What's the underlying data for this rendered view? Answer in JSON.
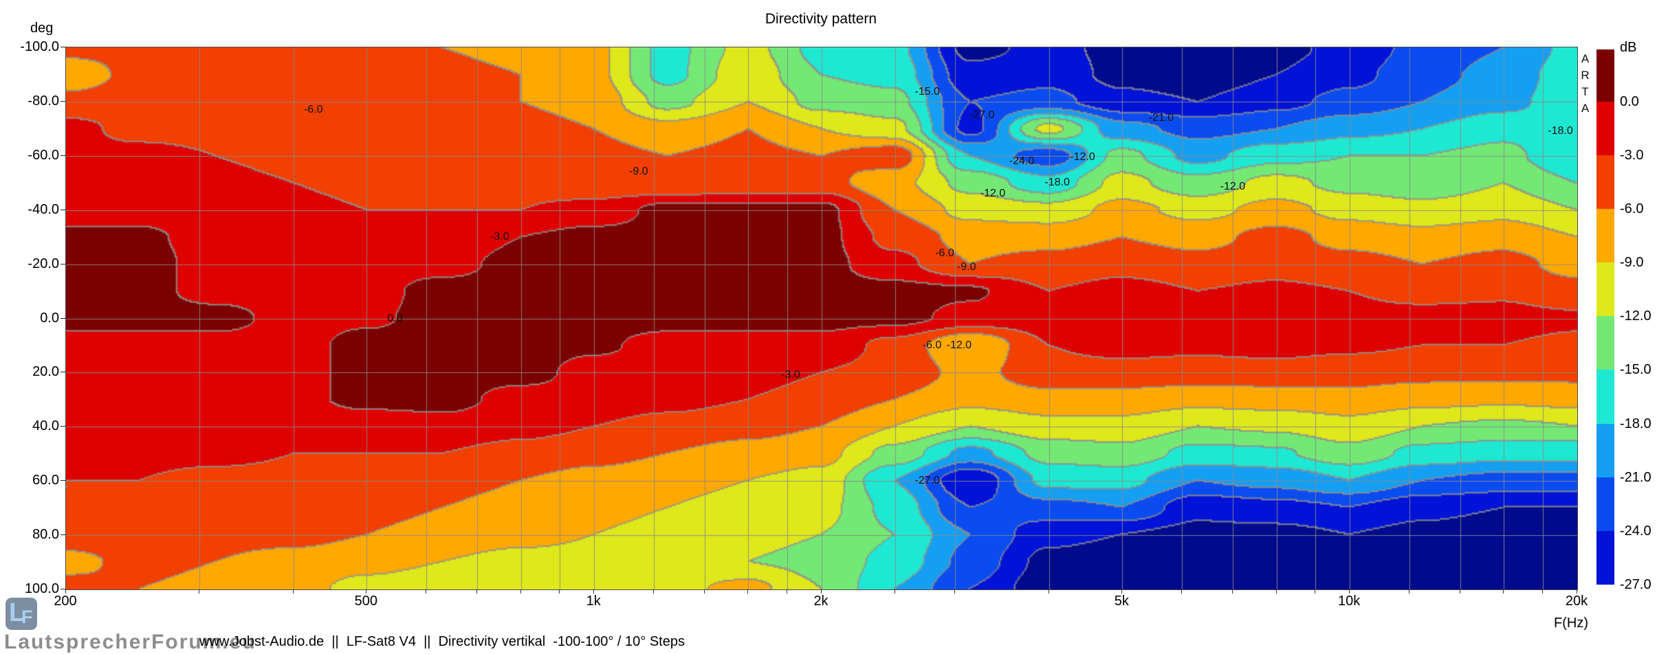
{
  "title": "Directivity pattern",
  "y_axis": {
    "label": "deg",
    "ticks": [
      "-100.0",
      "-80.0",
      "-60.0",
      "-40.0",
      "-20.0",
      "0.0",
      "20.0",
      "40.0",
      "60.0",
      "80.0",
      "100.0"
    ],
    "values": [
      -100,
      -80,
      -60,
      -40,
      -20,
      0,
      20,
      40,
      60,
      80,
      100
    ]
  },
  "x_axis": {
    "label": "F(Hz)",
    "ticks": [
      {
        "f": 200,
        "label": "200"
      },
      {
        "f": 500,
        "label": "500"
      },
      {
        "f": 1000,
        "label": "1k"
      },
      {
        "f": 2000,
        "label": "2k"
      },
      {
        "f": 5000,
        "label": "5k"
      },
      {
        "f": 10000,
        "label": "10k"
      },
      {
        "f": 20000,
        "label": "20k"
      }
    ]
  },
  "colorbar": {
    "label": "dB",
    "tick_labels": [
      "0.0",
      "-3.0",
      "-6.0",
      "-9.0",
      "-12.0",
      "-15.0",
      "-18.0",
      "-21.0",
      "-24.0",
      "-27.0"
    ]
  },
  "arta": "ARTA",
  "watermark": {
    "text": "LautsprecherForum.eu",
    "logo_l": "L",
    "logo_f": "F"
  },
  "footer": "www.Jobst-Audio.de  ||  LF-Sat8 V4  ||  Directivity vertikal  -100-100° / 10° Steps",
  "chart_data": {
    "type": "contour",
    "title": "Directivity pattern",
    "xlabel": "F(Hz)",
    "ylabel": "deg",
    "zlabel": "dB",
    "x_scale": "log",
    "x_range_hz": [
      200,
      20000
    ],
    "y_range_deg": [
      -100,
      100
    ],
    "levels_db": [
      0,
      -3,
      -6,
      -9,
      -12,
      -15,
      -18,
      -21,
      -24,
      -27
    ],
    "palette": [
      "#7B0000",
      "#DE0000",
      "#F14000",
      "#FFA800",
      "#DEE81A",
      "#74E874",
      "#1FE8D2",
      "#159FF2",
      "#0A4CF0",
      "#0013D6",
      "#000A8C"
    ],
    "grid_color": "#8a8a8a",
    "contour_border_color": "#909090",
    "grid_minor_freqs_hz": [
      300,
      400,
      500,
      600,
      700,
      800,
      900,
      1000,
      1200,
      1400,
      1600,
      1800,
      2000,
      2500,
      3000,
      4000,
      5000,
      6000,
      7000,
      8000,
      9000,
      10000,
      12000,
      14000,
      16000,
      18000
    ],
    "freqs_hz": [
      200,
      250,
      315,
      400,
      500,
      630,
      800,
      1000,
      1250,
      1600,
      2000,
      2500,
      3150,
      4000,
      5000,
      6300,
      8000,
      10000,
      12500,
      16000,
      20000
    ],
    "angles_deg": [
      -100,
      -90,
      -80,
      -70,
      -60,
      -50,
      -40,
      -30,
      -20,
      -10,
      0,
      10,
      20,
      30,
      40,
      50,
      60,
      70,
      80,
      90,
      100
    ],
    "spl_db": [
      [
        -5,
        -5,
        -5,
        -5,
        -5,
        -6,
        -7,
        -8,
        -16,
        -11,
        -16,
        -17,
        -28,
        -26,
        -28,
        -29,
        -28,
        -26,
        -23,
        -21,
        -17
      ],
      [
        -8,
        -5,
        -5,
        -5,
        -5,
        -5,
        -6,
        -8,
        -16,
        -10,
        -15,
        -16,
        -26,
        -25,
        -28,
        -29,
        -27,
        -25,
        -22,
        -20,
        -16
      ],
      [
        -5,
        -4,
        -4,
        -4,
        -4,
        -5,
        -6,
        -7,
        -13,
        -9,
        -13,
        -14,
        -24,
        -23,
        -26,
        -27,
        -25,
        -23,
        -21,
        -19,
        -16
      ],
      [
        -2,
        -4,
        -4,
        -4,
        -4,
        -4,
        -5,
        -6,
        -8,
        -6,
        -9,
        -11,
        -25,
        -11,
        -20,
        -22,
        -21,
        -19,
        -18,
        -16,
        -17
      ],
      [
        -2,
        -2,
        -3,
        -4,
        -4,
        -4,
        -5,
        -5,
        -6,
        -5,
        -6,
        -4,
        -18,
        -23,
        -14,
        -19,
        -16,
        -15,
        -15,
        -14,
        -18
      ],
      [
        -2,
        -2,
        -2,
        -3,
        -4,
        -4,
        -4,
        -5,
        -6,
        -5,
        -5,
        -8,
        -13,
        -17,
        -11,
        -14,
        -11,
        -13,
        -14,
        -12,
        -15
      ],
      [
        -1,
        -1,
        -2,
        -2,
        -3,
        -3,
        -3,
        -2,
        1,
        1,
        1,
        -6,
        -10,
        -11,
        -8,
        -10,
        -8,
        -10,
        -11,
        -10,
        -12
      ],
      [
        0.5,
        0.5,
        -1,
        -1,
        -2,
        -2,
        0,
        1,
        1,
        1,
        1,
        -4,
        -7,
        -7,
        -6,
        -7,
        -5,
        -7,
        -8,
        -7,
        -9
      ],
      [
        1,
        1,
        -1,
        -1,
        -1,
        -1,
        1,
        1,
        1,
        1,
        1,
        -2,
        -6,
        -5,
        -4,
        -5,
        -4,
        -5,
        -6,
        -5,
        -7
      ],
      [
        1,
        1,
        -1,
        -1,
        -1,
        1,
        1,
        1,
        1,
        1,
        1,
        1,
        0.5,
        -3,
        -2,
        -3,
        -2.5,
        -3,
        -4,
        -3.5,
        -5
      ],
      [
        1,
        1,
        1,
        -1,
        -0.5,
        1,
        1,
        1,
        1,
        1,
        1,
        1,
        -1,
        -1.5,
        -1,
        -1.5,
        -1.5,
        -2,
        -2,
        -2,
        -2.5
      ],
      [
        -1,
        -1,
        -1,
        -1,
        1,
        1,
        1,
        0.5,
        -1,
        -1,
        -1,
        -4,
        -9,
        -3,
        -2,
        -2.5,
        -2,
        -2.5,
        -3,
        -3,
        -3.5
      ],
      [
        -1,
        -1,
        -1,
        -1,
        1,
        1,
        1,
        -1,
        -1,
        -2,
        -3,
        -4,
        -7,
        -4,
        -4,
        -4,
        -4,
        -4.5,
        -5,
        -5,
        -5
      ],
      [
        -1,
        -1,
        -1,
        -1,
        1,
        1,
        -1,
        -1,
        -2,
        -3,
        -4,
        -6,
        -8,
        -7,
        -7,
        -8,
        -7.5,
        -7,
        -8,
        -8.5,
        -8
      ],
      [
        -2,
        -2,
        -2,
        -2,
        -2,
        -1,
        -2,
        -3,
        -4,
        -5,
        -6,
        -9,
        -12,
        -10,
        -10,
        -12,
        -11.5,
        -10,
        -12,
        -12.5,
        -12
      ],
      [
        -2,
        -2,
        -2,
        -3,
        -3,
        -3,
        -4,
        -5,
        -6,
        -7,
        -8,
        -13,
        -19,
        -14,
        -13,
        -16,
        -15.5,
        -13,
        -16,
        -17,
        -17
      ],
      [
        -3,
        -3,
        -4,
        -4,
        -4,
        -5,
        -6,
        -7,
        -8,
        -9,
        -10,
        -18,
        -27,
        -17,
        -17,
        -21,
        -20,
        -18,
        -21,
        -22,
        -22
      ],
      [
        -3,
        -4,
        -4,
        -4,
        -5,
        -6,
        -7,
        -8,
        -9,
        -10,
        -11,
        -16,
        -24,
        -22,
        -21,
        -26,
        -25,
        -24,
        -26,
        -27,
        -27
      ],
      [
        -4,
        -4,
        -5,
        -5,
        -6,
        -7,
        -8,
        -9,
        -10,
        -11,
        -12,
        -15,
        -21,
        -26,
        -27,
        -28,
        -28,
        -27,
        -28,
        -29,
        -29
      ],
      [
        -7,
        -5,
        -6,
        -7,
        -8,
        -9,
        -10,
        -10,
        -11,
        -12,
        -13,
        -16,
        -22,
        -28,
        -29,
        -29,
        -29,
        -28,
        -28,
        -29,
        -29
      ],
      [
        -5,
        -6,
        -7,
        -8,
        -10,
        -11,
        -11,
        -10,
        -10,
        -8,
        -12,
        -18,
        -24,
        -29,
        -29,
        -29,
        -29,
        -28,
        -28,
        -29,
        -29
      ]
    ],
    "contour_labels": [
      {
        "text": "-6.0",
        "f": 425,
        "deg": -77
      },
      {
        "text": "-9.0",
        "f": 1145,
        "deg": -54
      },
      {
        "text": "-3.0",
        "f": 750,
        "deg": -30
      },
      {
        "text": "0.0",
        "f": 545,
        "deg": 0
      },
      {
        "text": "-15.0",
        "f": 2760,
        "deg": -83.5
      },
      {
        "text": "-27.0",
        "f": 3260,
        "deg": -75
      },
      {
        "text": "-21.0",
        "f": 5630,
        "deg": -74
      },
      {
        "text": "-24.0",
        "f": 3680,
        "deg": -58
      },
      {
        "text": "-12.0",
        "f": 4430,
        "deg": -59.5
      },
      {
        "text": "-18.0",
        "f": 4100,
        "deg": -50
      },
      {
        "text": "-12.0",
        "f": 3370,
        "deg": -46
      },
      {
        "text": "-12.0",
        "f": 7000,
        "deg": -48.5
      },
      {
        "text": "-18.0",
        "f": 19000,
        "deg": -69
      },
      {
        "text": "-6.0",
        "f": 2910,
        "deg": -24
      },
      {
        "text": "-9.0",
        "f": 3110,
        "deg": -19
      },
      {
        "text": "-6.0",
        "f": 2800,
        "deg": 10
      },
      {
        "text": "-12.0",
        "f": 3040,
        "deg": 10
      },
      {
        "text": "-3.0",
        "f": 1820,
        "deg": 21
      },
      {
        "text": "-27.0",
        "f": 2760,
        "deg": 60
      }
    ]
  }
}
